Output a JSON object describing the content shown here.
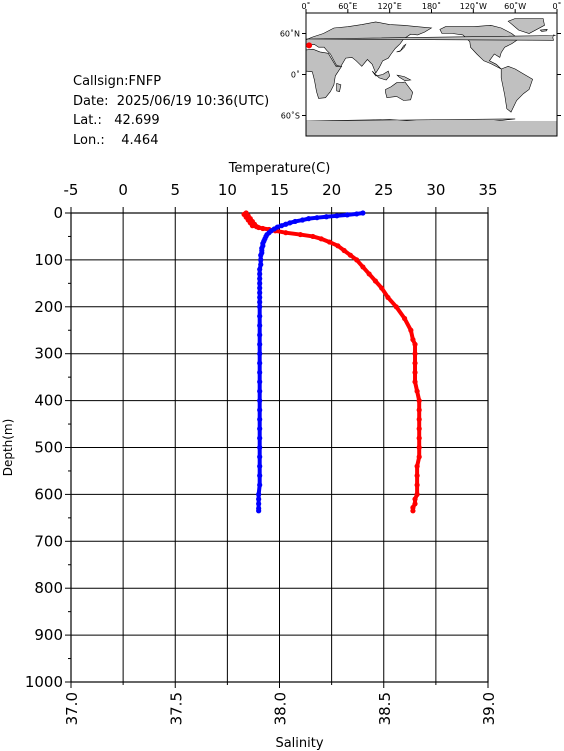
{
  "info": {
    "callsign_text": "Callsign:FNFP",
    "date_text": "Date:  2025/06/19 10:36(UTC)",
    "lat_text": "Lat.:   42.699",
    "lon_text": "Lon.:    4.464"
  },
  "map": {
    "lon_labels": [
      "0˚",
      "60˚E",
      "120˚E",
      "180˚",
      "120˚W",
      "60˚W",
      "0˚"
    ],
    "lat_labels": [
      "60˚N",
      "0˚",
      "60˚S"
    ],
    "marker": {
      "lat": 42.699,
      "lon": 4.464
    },
    "ocean_color": "#ffffff",
    "land_color": "#c0c0c0",
    "marker_color": "#ff0000"
  },
  "chart_data": {
    "type": "scatter",
    "title": "",
    "y_label": "Depth(m)",
    "y_range": [
      0,
      1000
    ],
    "y_ticks": [
      "0",
      "100",
      "200",
      "300",
      "400",
      "500",
      "600",
      "700",
      "800",
      "900",
      "1000"
    ],
    "top_axis": {
      "label": "Temperature(C)",
      "range": [
        -5,
        35
      ],
      "ticks": [
        "-5",
        "0",
        "5",
        "10",
        "15",
        "20",
        "25",
        "30",
        "35"
      ]
    },
    "bottom_axis": {
      "label": "Salinity",
      "range": [
        37.0,
        39.0
      ],
      "ticks": [
        "37.0",
        "37.5",
        "38.0",
        "38.5",
        "39.0"
      ]
    },
    "grid": true,
    "series": [
      {
        "variable": "temperature",
        "axis": "top",
        "color": "#ff0000",
        "points": [
          [
            23.0,
            0
          ],
          [
            22.4,
            2
          ],
          [
            21.5,
            4
          ],
          [
            20.5,
            6
          ],
          [
            19.5,
            8
          ],
          [
            18.6,
            10
          ],
          [
            17.8,
            12
          ],
          [
            17.2,
            15
          ],
          [
            16.5,
            18
          ],
          [
            16.0,
            21
          ],
          [
            15.6,
            24
          ],
          [
            15.2,
            27
          ],
          [
            14.8,
            30
          ],
          [
            14.5,
            34
          ],
          [
            14.2,
            38
          ],
          [
            14.0,
            42
          ],
          [
            13.8,
            46
          ],
          [
            13.7,
            50
          ],
          [
            13.6,
            55
          ],
          [
            13.5,
            60
          ],
          [
            13.4,
            65
          ],
          [
            13.4,
            70
          ],
          [
            13.3,
            75
          ],
          [
            13.3,
            80
          ],
          [
            13.3,
            85
          ],
          [
            13.2,
            90
          ],
          [
            13.2,
            100
          ],
          [
            13.2,
            110
          ],
          [
            13.1,
            120
          ],
          [
            13.1,
            130
          ],
          [
            13.1,
            140
          ],
          [
            13.1,
            150
          ],
          [
            13.1,
            160
          ],
          [
            13.1,
            170
          ],
          [
            13.1,
            180
          ],
          [
            13.1,
            190
          ],
          [
            13.1,
            200
          ],
          [
            13.1,
            220
          ],
          [
            13.1,
            240
          ],
          [
            13.1,
            260
          ],
          [
            13.1,
            280
          ],
          [
            13.1,
            300
          ],
          [
            13.1,
            320
          ],
          [
            13.1,
            340
          ],
          [
            13.1,
            360
          ],
          [
            13.1,
            380
          ],
          [
            13.1,
            400
          ],
          [
            13.1,
            420
          ],
          [
            13.1,
            440
          ],
          [
            13.1,
            460
          ],
          [
            13.1,
            480
          ],
          [
            13.1,
            500
          ],
          [
            13.1,
            520
          ],
          [
            13.1,
            540
          ],
          [
            13.1,
            560
          ],
          [
            13.1,
            580
          ],
          [
            13.0,
            600
          ],
          [
            13.0,
            610
          ],
          [
            13.0,
            620
          ],
          [
            13.0,
            630
          ],
          [
            13.0,
            635
          ]
        ]
      },
      {
        "variable": "salinity",
        "axis": "bottom",
        "color": "#ff0000",
        "points": [
          [
            37.84,
            0
          ],
          [
            37.83,
            3
          ],
          [
            37.85,
            6
          ],
          [
            37.84,
            9
          ],
          [
            37.86,
            12
          ],
          [
            37.85,
            15
          ],
          [
            37.87,
            18
          ],
          [
            37.86,
            21
          ],
          [
            37.88,
            24
          ],
          [
            37.87,
            27
          ],
          [
            37.89,
            29
          ],
          [
            37.9,
            31
          ],
          [
            37.92,
            33
          ],
          [
            37.95,
            35
          ],
          [
            37.98,
            38
          ],
          [
            38.03,
            42
          ],
          [
            38.1,
            46
          ],
          [
            38.16,
            50
          ],
          [
            38.2,
            55
          ],
          [
            38.24,
            62
          ],
          [
            38.28,
            70
          ],
          [
            38.31,
            80
          ],
          [
            38.34,
            90
          ],
          [
            38.37,
            100
          ],
          [
            38.4,
            115
          ],
          [
            38.43,
            130
          ],
          [
            38.46,
            145
          ],
          [
            38.49,
            160
          ],
          [
            38.52,
            180
          ],
          [
            38.56,
            200
          ],
          [
            38.6,
            225
          ],
          [
            38.63,
            250
          ],
          [
            38.64,
            270
          ],
          [
            38.65,
            280
          ],
          [
            38.65,
            300
          ],
          [
            38.65,
            320
          ],
          [
            38.65,
            340
          ],
          [
            38.65,
            360
          ],
          [
            38.66,
            380
          ],
          [
            38.67,
            400
          ],
          [
            38.67,
            420
          ],
          [
            38.67,
            440
          ],
          [
            38.67,
            460
          ],
          [
            38.67,
            480
          ],
          [
            38.67,
            500
          ],
          [
            38.67,
            520
          ],
          [
            38.66,
            540
          ],
          [
            38.66,
            560
          ],
          [
            38.66,
            580
          ],
          [
            38.66,
            600
          ],
          [
            38.65,
            610
          ],
          [
            38.65,
            620
          ],
          [
            38.64,
            628
          ],
          [
            38.64,
            635
          ]
        ]
      },
      {
        "variable": "temperature",
        "axis": "top",
        "color": "#0000ff",
        "points": [
          [
            23.0,
            0
          ],
          [
            22.4,
            2
          ],
          [
            21.5,
            4
          ],
          [
            20.5,
            6
          ],
          [
            19.5,
            8
          ],
          [
            18.6,
            10
          ],
          [
            17.8,
            12
          ],
          [
            17.2,
            15
          ],
          [
            16.5,
            18
          ],
          [
            16.0,
            21
          ],
          [
            15.6,
            24
          ],
          [
            15.2,
            27
          ],
          [
            14.8,
            30
          ],
          [
            14.5,
            34
          ],
          [
            14.2,
            38
          ],
          [
            14.0,
            42
          ],
          [
            13.8,
            46
          ],
          [
            13.7,
            50
          ],
          [
            13.6,
            55
          ],
          [
            13.5,
            60
          ],
          [
            13.4,
            65
          ],
          [
            13.4,
            70
          ],
          [
            13.3,
            75
          ],
          [
            13.3,
            80
          ],
          [
            13.3,
            85
          ],
          [
            13.2,
            90
          ],
          [
            13.2,
            100
          ],
          [
            13.2,
            110
          ],
          [
            13.1,
            120
          ],
          [
            13.1,
            130
          ],
          [
            13.1,
            140
          ],
          [
            13.1,
            150
          ],
          [
            13.1,
            160
          ],
          [
            13.1,
            170
          ],
          [
            13.1,
            180
          ],
          [
            13.1,
            190
          ],
          [
            13.1,
            200
          ],
          [
            13.1,
            220
          ],
          [
            13.1,
            240
          ],
          [
            13.1,
            260
          ],
          [
            13.1,
            280
          ],
          [
            13.1,
            300
          ],
          [
            13.1,
            320
          ],
          [
            13.1,
            340
          ],
          [
            13.1,
            360
          ],
          [
            13.1,
            380
          ],
          [
            13.1,
            400
          ],
          [
            13.1,
            420
          ],
          [
            13.1,
            440
          ],
          [
            13.1,
            460
          ],
          [
            13.1,
            480
          ],
          [
            13.1,
            500
          ],
          [
            13.1,
            520
          ],
          [
            13.1,
            540
          ],
          [
            13.1,
            560
          ],
          [
            13.1,
            580
          ],
          [
            13.0,
            600
          ],
          [
            13.0,
            610
          ],
          [
            13.0,
            620
          ],
          [
            13.0,
            630
          ],
          [
            13.0,
            635
          ]
        ]
      }
    ]
  }
}
